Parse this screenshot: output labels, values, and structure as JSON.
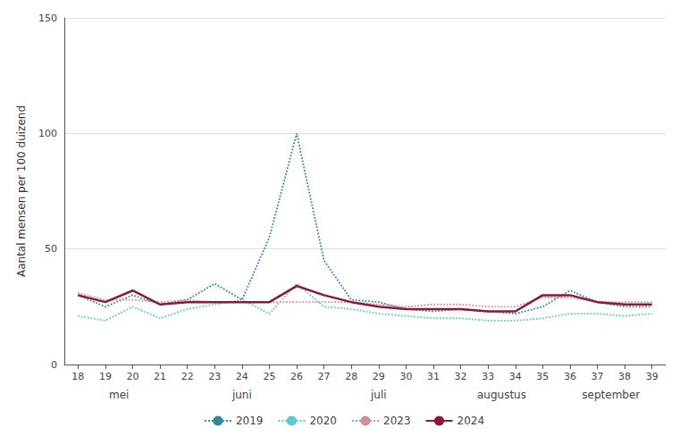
{
  "chart_data": {
    "type": "line",
    "ylabel": "Aantal mensen per 100 duizend",
    "x": [
      18,
      19,
      20,
      21,
      22,
      23,
      24,
      25,
      26,
      27,
      28,
      29,
      30,
      31,
      32,
      33,
      34,
      35,
      36,
      37,
      38,
      39
    ],
    "series": [
      {
        "name": "2019",
        "color": "#2e8b9a",
        "line_style": "dotted",
        "values": [
          30,
          25,
          30,
          26,
          28,
          35,
          28,
          55,
          100,
          45,
          28,
          27,
          24,
          23,
          24,
          23,
          22,
          25,
          32,
          27,
          25,
          25
        ]
      },
      {
        "name": "2020",
        "color": "#5bc8d4",
        "line_style": "dotted",
        "values": [
          21,
          19,
          25,
          20,
          24,
          26,
          28,
          22,
          35,
          25,
          24,
          22,
          21,
          20,
          20,
          19,
          19,
          20,
          22,
          22,
          21,
          22
        ]
      },
      {
        "name": "2023",
        "color": "#d4909a",
        "line_style": "dotted",
        "values": [
          31,
          28,
          28,
          27,
          28,
          27,
          27,
          27,
          27,
          27,
          27,
          26,
          25,
          26,
          26,
          25,
          25,
          29,
          29,
          27,
          27,
          27
        ]
      },
      {
        "name": "2024",
        "color": "#8b1a3a",
        "line_style": "solid",
        "values": [
          30,
          27,
          32,
          26,
          27,
          27,
          27,
          27,
          34,
          30,
          27,
          25,
          24,
          24,
          24,
          23,
          23,
          30,
          30,
          27,
          26,
          26
        ]
      }
    ],
    "xlim": [
      17.5,
      39.5
    ],
    "xticks": [
      18,
      19,
      20,
      21,
      22,
      23,
      24,
      25,
      26,
      27,
      28,
      29,
      30,
      31,
      32,
      33,
      34,
      35,
      36,
      37,
      38,
      39
    ],
    "ylim": [
      0,
      150
    ],
    "yticks": [
      0,
      50,
      100,
      150
    ],
    "grid": true,
    "legend": "bottom",
    "annotations": [
      {
        "text": "mei",
        "x": 19.5
      },
      {
        "text": "juni",
        "x": 24.0
      },
      {
        "text": "juli",
        "x": 29.0
      },
      {
        "text": "augustus",
        "x": 33.5
      },
      {
        "text": "september",
        "x": 37.5
      }
    ]
  }
}
